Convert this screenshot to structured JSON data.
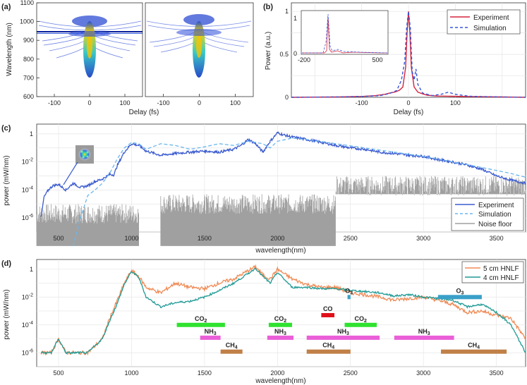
{
  "colors": {
    "experiment": "#d6243e",
    "simulation": "#3556d8",
    "c_experiment": "#3b5bcf",
    "c_simulation": "#6ab7ee",
    "noise": "#a0a0a0",
    "hnlf5": "#f08a55",
    "hnlf4": "#1f9a95",
    "co2": "#2fe22f",
    "nh3": "#ea5fd8",
    "ch4": "#c08047",
    "co": "#e0101a",
    "o3": "#3aa0c8"
  },
  "panels": {
    "a": {
      "label": "(a)",
      "xlabel": "Delay (fs)",
      "ylabel": "Wavelength (nm)"
    },
    "b": {
      "label": "(b)",
      "xlabel": "Delay (fs)",
      "ylabel": "Power (a.u.)"
    },
    "c": {
      "label": "(c)",
      "xlabel": "wavelength(nm)",
      "ylabel": "power (mW/nm)"
    },
    "d": {
      "label": "(d)",
      "xlabel": "wavelength(nm)",
      "ylabel": "power (mW/nm)"
    }
  },
  "chart_data": [
    {
      "id": "a",
      "type": "heatmap",
      "subplots": [
        "left",
        "right"
      ],
      "xlabel": "Delay (fs)",
      "ylabel": "Wavelength (nm)",
      "xlim": [
        -150,
        150
      ],
      "ylim": [
        600,
        1100
      ],
      "x_ticks": [
        "-100",
        "0",
        "100"
      ],
      "y_ticks": [
        "600",
        "700",
        "800",
        "900",
        "1000",
        "1100"
      ]
    },
    {
      "id": "b",
      "type": "line",
      "xlabel": "Delay (fs)",
      "ylabel": "Power (a.u.)",
      "xlim": [
        -250,
        250
      ],
      "ylim": [
        0,
        1.1
      ],
      "x_ticks": [
        "-100",
        "0",
        "100"
      ],
      "y_ticks": [
        "0",
        "0.5",
        "1"
      ],
      "legend": [
        "Experiment",
        "Simulation"
      ],
      "legend_position": "top-right",
      "inset": {
        "x_ticks": [
          "-200",
          "500"
        ],
        "y_ticks": [
          "0",
          "1"
        ]
      },
      "series": [
        {
          "name": "Experiment",
          "style": "solid",
          "x": [
            -250,
            -150,
            -100,
            -70,
            -50,
            -40,
            -30,
            -20,
            -12,
            -6,
            -3,
            0,
            3,
            6,
            12,
            20,
            30,
            40,
            60,
            90,
            130,
            200,
            250
          ],
          "y": [
            0,
            0.004,
            0.01,
            0.02,
            0.035,
            0.05,
            0.06,
            0.08,
            0.12,
            0.35,
            0.75,
            1.0,
            0.75,
            0.35,
            0.12,
            0.06,
            0.04,
            0.025,
            0.015,
            0.012,
            0.008,
            0.004,
            0
          ]
        },
        {
          "name": "Simulation",
          "style": "dashed",
          "x": [
            -250,
            -150,
            -100,
            -60,
            -40,
            -25,
            -15,
            -8,
            -4,
            0,
            4,
            8,
            12,
            16,
            20,
            30,
            50,
            70,
            85,
            100,
            130,
            200,
            250
          ],
          "y": [
            0,
            0.005,
            0.01,
            0.02,
            0.045,
            0.08,
            0.2,
            0.42,
            0.8,
            1.0,
            0.8,
            0.3,
            0.2,
            0.33,
            0.15,
            0.05,
            0.02,
            0.035,
            0.06,
            0.035,
            0.012,
            0.004,
            0
          ]
        }
      ]
    },
    {
      "id": "c",
      "type": "line",
      "xlabel": "wavelength(nm)",
      "ylabel": "power (mW/nm)",
      "yscale": "log",
      "xlim": [
        350,
        3700
      ],
      "ylim": [
        1e-07,
        5
      ],
      "x_ticks": [
        "500",
        "1000",
        "1500",
        "2000",
        "2500",
        "3000",
        "3500"
      ],
      "y_ticks": [
        "10^-6",
        "10^-4",
        "10^-2",
        "1"
      ],
      "legend": [
        "Experiment",
        "Simulation",
        "Noise floor"
      ],
      "legend_position": "bottom-right",
      "series": [
        {
          "name": "Experiment",
          "style": "solid",
          "x": [
            380,
            400,
            430,
            460,
            500,
            550,
            600,
            650,
            700,
            750,
            800,
            850,
            880,
            900,
            950,
            1000,
            1050,
            1100,
            1200,
            1300,
            1400,
            1500,
            1600,
            1700,
            1750,
            1800,
            1850,
            1900,
            1950,
            2000,
            2050,
            2100,
            2200,
            2300,
            2400,
            2500,
            2600,
            2700,
            2800,
            2900,
            3000,
            3100,
            3200,
            3300,
            3400,
            3500,
            3600,
            3700
          ],
          "y": [
            1e-06,
            3e-05,
            0.0001,
            0.0002,
            0.00025,
            0.0001,
            0.0003,
            0.00015,
            0.0002,
            0.0004,
            0.0006,
            0.0013,
            0.0012,
            0.005,
            0.05,
            0.2,
            0.15,
            0.06,
            0.03,
            0.04,
            0.05,
            0.06,
            0.05,
            0.08,
            0.15,
            0.4,
            0.2,
            0.05,
            0.3,
            1.2,
            0.8,
            0.6,
            0.4,
            0.25,
            0.15,
            0.1,
            0.08,
            0.05,
            0.04,
            0.03,
            0.025,
            0.015,
            0.01,
            0.006,
            0.003,
            0.001,
            0.0005,
            0.0003
          ]
        },
        {
          "name": "Simulation",
          "style": "dashed",
          "x": [
            600,
            650,
            700,
            750,
            800,
            850,
            900,
            950,
            1000,
            1050,
            1100,
            1200,
            1300,
            1400,
            1500,
            1600,
            1700,
            1800,
            1900,
            1950,
            2000,
            2100,
            2200,
            2400,
            2600,
            2800,
            3000,
            3200,
            3400,
            3600,
            3700
          ],
          "y": [
            1e-08,
            1e-06,
            4e-05,
            0.0001,
            0.0003,
            0.0015,
            0.015,
            0.1,
            0.25,
            0.2,
            0.08,
            0.2,
            0.15,
            0.08,
            0.12,
            0.2,
            0.15,
            0.3,
            0.2,
            0.1,
            0.3,
            0.5,
            0.4,
            0.2,
            0.1,
            0.05,
            0.025,
            0.01,
            0.004,
            0.0015,
            0.0008
          ]
        }
      ],
      "noise_floor": [
        {
          "x_range": [
            350,
            1050
          ],
          "level": 2e-06
        },
        {
          "x_range": [
            1200,
            2400
          ],
          "level": 1e-05
        },
        {
          "x_range": [
            2400,
            3700
          ],
          "level": 0.0002
        }
      ]
    },
    {
      "id": "d",
      "type": "line",
      "xlabel": "wavelength(nm)",
      "ylabel": "power (mW/nm)",
      "yscale": "log",
      "xlim": [
        350,
        3700
      ],
      "ylim": [
        1e-07,
        5
      ],
      "x_ticks": [
        "500",
        "1000",
        "1500",
        "2000",
        "2500",
        "3000",
        "3500"
      ],
      "y_ticks": [
        "10^-6",
        "10^-4",
        "10^-2",
        "1"
      ],
      "legend": [
        "5 cm HNLF",
        "4 cm HNLF"
      ],
      "legend_position": "top-right",
      "series": [
        {
          "name": "5 cm HNLF",
          "style": "solid",
          "x": [
            380,
            450,
            500,
            550,
            600,
            700,
            800,
            850,
            900,
            950,
            1000,
            1050,
            1100,
            1200,
            1300,
            1400,
            1500,
            1600,
            1700,
            1800,
            1850,
            1900,
            1950,
            2000,
            2100,
            2200,
            2300,
            2400,
            2500,
            2600,
            2700,
            2800,
            2900,
            3000,
            3100,
            3200,
            3300,
            3400,
            3500,
            3600,
            3700
          ],
          "y": [
            1e-06,
            1e-06,
            1e-05,
            1e-06,
            1e-06,
            1e-06,
            1e-05,
            0.0003,
            0.005,
            0.1,
            0.8,
            0.3,
            0.05,
            0.02,
            0.1,
            0.05,
            0.04,
            0.1,
            0.2,
            0.8,
            1.5,
            0.4,
            0.2,
            1.0,
            0.2,
            0.08,
            0.05,
            0.05,
            0.02,
            0.015,
            0.01,
            0.006,
            0.008,
            0.01,
            0.006,
            0.003,
            0.0008,
            0.001,
            0.0005,
            0.0003,
            1e-05
          ]
        },
        {
          "name": "4 cm HNLF",
          "style": "solid",
          "x": [
            380,
            450,
            500,
            550,
            600,
            700,
            800,
            850,
            900,
            950,
            1000,
            1050,
            1100,
            1200,
            1300,
            1400,
            1500,
            1600,
            1700,
            1800,
            1850,
            1900,
            1950,
            2000,
            2100,
            2200,
            2300,
            2400,
            2500,
            2600,
            2700,
            2800,
            2900,
            3000,
            3100,
            3200,
            3300,
            3400,
            3500,
            3600,
            3700
          ],
          "y": [
            1e-06,
            1e-06,
            1e-05,
            1e-06,
            1e-06,
            1e-06,
            1e-05,
            0.0002,
            0.003,
            0.08,
            0.7,
            0.25,
            0.01,
            0.002,
            0.004,
            0.005,
            0.01,
            0.03,
            0.1,
            0.5,
            1.2,
            0.3,
            0.1,
            0.6,
            0.05,
            0.05,
            0.04,
            0.04,
            0.03,
            0.025,
            0.02,
            0.012,
            0.015,
            0.01,
            0.008,
            0.006,
            0.002,
            0.003,
            0.0008,
            0.0001,
            1e-06
          ]
        }
      ],
      "absorption_bands": [
        {
          "gas": "CO2",
          "label": "CO",
          "sub": "2",
          "x_range": [
            1310,
            1640
          ],
          "level": 0.0001,
          "color_key": "co2"
        },
        {
          "gas": "CO2",
          "label": "CO",
          "sub": "2",
          "x_range": [
            1940,
            2100
          ],
          "level": 0.0001,
          "color_key": "co2"
        },
        {
          "gas": "CO2",
          "label": "CO",
          "sub": "2",
          "x_range": [
            2460,
            2680
          ],
          "level": 0.0001,
          "color_key": "co2"
        },
        {
          "gas": "NH3",
          "label": "NH",
          "sub": "3",
          "x_range": [
            1470,
            1610
          ],
          "level": 1.2e-05,
          "color_key": "nh3"
        },
        {
          "gas": "NH3",
          "label": "NH",
          "sub": "3",
          "x_range": [
            1930,
            2110
          ],
          "level": 1.2e-05,
          "color_key": "nh3"
        },
        {
          "gas": "NH3",
          "label": "NH",
          "sub": "3",
          "x_range": [
            2200,
            2700
          ],
          "level": 1.2e-05,
          "color_key": "nh3"
        },
        {
          "gas": "NH3",
          "label": "NH",
          "sub": "3",
          "x_range": [
            2800,
            3210
          ],
          "level": 1.2e-05,
          "color_key": "nh3"
        },
        {
          "gas": "CH4",
          "label": "CH",
          "sub": "4",
          "x_range": [
            1610,
            1760
          ],
          "level": 1.2e-06,
          "color_key": "ch4"
        },
        {
          "gas": "CH4",
          "label": "CH",
          "sub": "4",
          "x_range": [
            2200,
            2500
          ],
          "level": 1.2e-06,
          "color_key": "ch4"
        },
        {
          "gas": "CH4",
          "label": "CH",
          "sub": "4",
          "x_range": [
            3120,
            3570
          ],
          "level": 1.2e-06,
          "color_key": "ch4"
        },
        {
          "gas": "CO",
          "label": "CO",
          "sub": "",
          "x_range": [
            2300,
            2390
          ],
          "level": 0.0005,
          "color_key": "co"
        },
        {
          "gas": "O3",
          "label": "O",
          "sub": "3",
          "x_range": [
            2480,
            2500
          ],
          "level": 0.01,
          "color_key": "o3"
        },
        {
          "gas": "O3",
          "label": "O",
          "sub": "3",
          "x_range": [
            3100,
            3400
          ],
          "level": 0.01,
          "color_key": "o3"
        }
      ]
    }
  ]
}
